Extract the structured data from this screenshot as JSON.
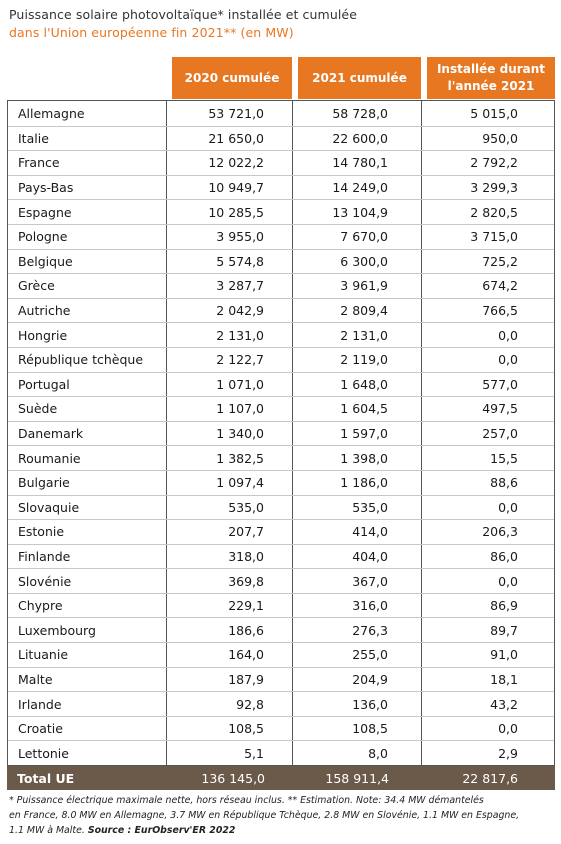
{
  "title": {
    "line1": "Puissance solaire photovoltaïque* installée et cumulée",
    "line2": "dans l'Union européenne fin 2021** (en MW)"
  },
  "headers": {
    "col1": "2020 cumulée",
    "col2": "2021 cumulée",
    "col3_line1": "Installée durant",
    "col3_line2": "l'année 2021"
  },
  "rows": [
    {
      "country": "Allemagne",
      "y2020": "53 721,0",
      "y2021": "58 728,0",
      "installed": "5 015,0"
    },
    {
      "country": "Italie",
      "y2020": "21 650,0",
      "y2021": "22 600,0",
      "installed": "950,0"
    },
    {
      "country": "France",
      "y2020": "12 022,2",
      "y2021": "14 780,1",
      "installed": "2 792,2"
    },
    {
      "country": "Pays-Bas",
      "y2020": "10 949,7",
      "y2021": "14 249,0",
      "installed": "3 299,3"
    },
    {
      "country": "Espagne",
      "y2020": "10 285,5",
      "y2021": "13 104,9",
      "installed": "2 820,5"
    },
    {
      "country": "Pologne",
      "y2020": "3 955,0",
      "y2021": "7 670,0",
      "installed": "3 715,0"
    },
    {
      "country": "Belgique",
      "y2020": "5 574,8",
      "y2021": "6 300,0",
      "installed": "725,2"
    },
    {
      "country": "Grèce",
      "y2020": "3 287,7",
      "y2021": "3 961,9",
      "installed": "674,2"
    },
    {
      "country": "Autriche",
      "y2020": "2 042,9",
      "y2021": "2 809,4",
      "installed": "766,5"
    },
    {
      "country": "Hongrie",
      "y2020": "2 131,0",
      "y2021": "2 131,0",
      "installed": "0,0"
    },
    {
      "country": "République tchèque",
      "y2020": "2 122,7",
      "y2021": "2 119,0",
      "installed": "0,0"
    },
    {
      "country": "Portugal",
      "y2020": "1 071,0",
      "y2021": "1 648,0",
      "installed": "577,0"
    },
    {
      "country": "Suède",
      "y2020": "1 107,0",
      "y2021": "1 604,5",
      "installed": "497,5"
    },
    {
      "country": "Danemark",
      "y2020": "1 340,0",
      "y2021": "1 597,0",
      "installed": "257,0"
    },
    {
      "country": "Roumanie",
      "y2020": "1 382,5",
      "y2021": "1 398,0",
      "installed": "15,5"
    },
    {
      "country": "Bulgarie",
      "y2020": "1 097,4",
      "y2021": "1 186,0",
      "installed": "88,6"
    },
    {
      "country": "Slovaquie",
      "y2020": "535,0",
      "y2021": "535,0",
      "installed": "0,0"
    },
    {
      "country": "Estonie",
      "y2020": "207,7",
      "y2021": "414,0",
      "installed": "206,3"
    },
    {
      "country": "Finlande",
      "y2020": "318,0",
      "y2021": "404,0",
      "installed": "86,0"
    },
    {
      "country": "Slovénie",
      "y2020": "369,8",
      "y2021": "367,0",
      "installed": "0,0"
    },
    {
      "country": "Chypre",
      "y2020": "229,1",
      "y2021": "316,0",
      "installed": "86,9"
    },
    {
      "country": "Luxembourg",
      "y2020": "186,6",
      "y2021": "276,3",
      "installed": "89,7"
    },
    {
      "country": "Lituanie",
      "y2020": "164,0",
      "y2021": "255,0",
      "installed": "91,0"
    },
    {
      "country": "Malte",
      "y2020": "187,9",
      "y2021": "204,9",
      "installed": "18,1"
    },
    {
      "country": "Irlande",
      "y2020": "92,8",
      "y2021": "136,0",
      "installed": "43,2"
    },
    {
      "country": "Croatie",
      "y2020": "108,5",
      "y2021": "108,5",
      "installed": "0,0"
    },
    {
      "country": "Lettonie",
      "y2020": "5,1",
      "y2021": "8,0",
      "installed": "2,9"
    }
  ],
  "total": {
    "label": "Total UE",
    "y2020": "136 145,0",
    "y2021": "158 911,4",
    "installed": "22 817,6"
  },
  "footnote": {
    "line1": "* Puissance électrique maximale nette, hors réseau inclus. ** Estimation. Note: 34.4 MW démantelés",
    "line2": "en France, 8.0 MW en Allemagne, 3.7 MW en République Tchèque, 2.8 MW en Slovénie, 1.1 MW en Espagne,",
    "line3": "1.1 MW à Malte.",
    "source": "Source : EurObserv'ER 2022"
  },
  "colors": {
    "accent": "#e87722",
    "total_bg": "#6b5a4a"
  }
}
